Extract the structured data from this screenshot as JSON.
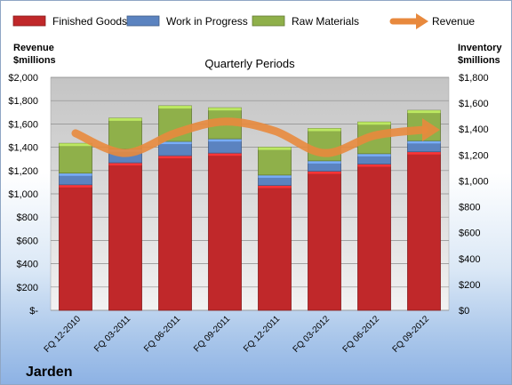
{
  "chart_data": {
    "type": "bar",
    "title": "Quarterly Periods",
    "company": "Jarden",
    "ylabel_left": "Revenue\n$millions",
    "ylabel_right": "Inventory\n$millions",
    "categories": [
      "FQ 12-2010",
      "FQ 03-2011",
      "FQ 06-2011",
      "FQ 09-2011",
      "FQ 12-2011",
      "FQ 03-2012",
      "FQ 06-2012",
      "FQ 09-2012"
    ],
    "left_ticks": [
      "$-",
      "$200",
      "$400",
      "$600",
      "$800",
      "$1,000",
      "$1,200",
      "$1,400",
      "$1,600",
      "$1,800",
      "$2,000"
    ],
    "right_ticks": [
      "$0",
      "$200",
      "$400",
      "$600",
      "$800",
      "$1,000",
      "$1,200",
      "$1,400",
      "$1,600",
      "$1,800"
    ],
    "ylim_left": [
      0,
      2000
    ],
    "ylim_right": [
      0,
      1800
    ],
    "inventory_series": [
      {
        "name": "Finished Goods",
        "color": "#c0282a",
        "values": [
          970,
          1140,
          1195,
          1215,
          965,
          1075,
          1130,
          1225
        ]
      },
      {
        "name": "Work in Progress",
        "color": "#5b83c0",
        "values": [
          90,
          105,
          110,
          110,
          80,
          80,
          80,
          85
        ]
      },
      {
        "name": "Raw Materials",
        "color": "#8fb04a",
        "values": [
          230,
          240,
          275,
          240,
          215,
          250,
          245,
          235
        ]
      }
    ],
    "revenue_series": {
      "name": "Revenue",
      "color": "#e8893d",
      "values": [
        1520,
        1350,
        1520,
        1620,
        1540,
        1350,
        1500,
        1550
      ]
    },
    "legend_position": "top",
    "grid": true
  }
}
